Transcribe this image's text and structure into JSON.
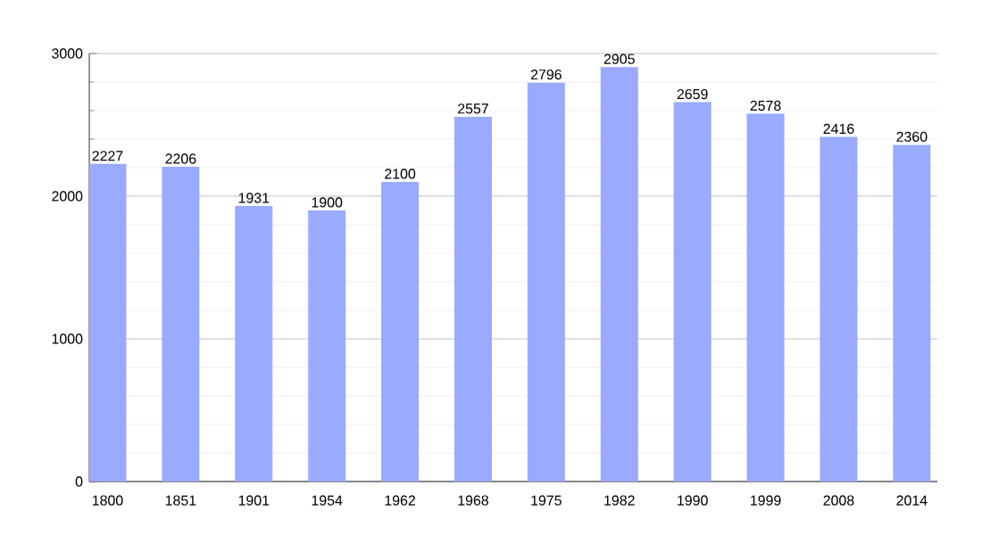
{
  "chart_data": {
    "type": "bar",
    "categories": [
      "1800",
      "1851",
      "1901",
      "1954",
      "1962",
      "1968",
      "1975",
      "1982",
      "1990",
      "1999",
      "2008",
      "2014"
    ],
    "values": [
      2227,
      2206,
      1931,
      1900,
      2100,
      2557,
      2796,
      2905,
      2659,
      2578,
      2416,
      2360
    ],
    "color": "#99aaff",
    "ylim": [
      0,
      3000
    ],
    "yticks": [
      0,
      1000,
      2000,
      3000
    ],
    "grid": "y",
    "data_labels": true
  }
}
